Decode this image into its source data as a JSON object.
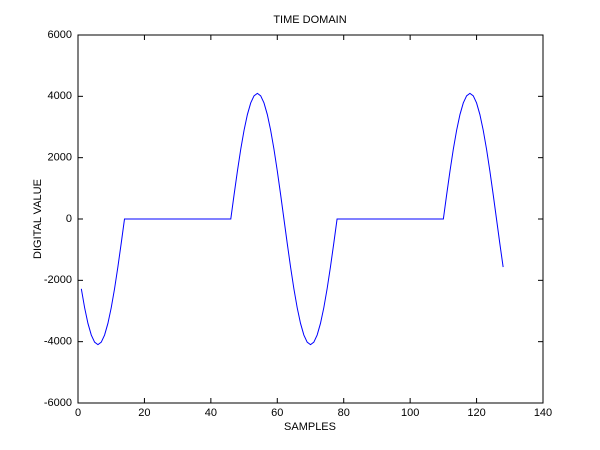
{
  "chart_data": {
    "type": "line",
    "title": "TIME DOMAIN",
    "xlabel": "SAMPLES",
    "ylabel": "DIGITAL VALUE",
    "x": [
      1,
      2,
      3,
      4,
      5,
      6,
      7,
      8,
      9,
      10,
      11,
      12,
      13,
      14,
      15,
      16,
      17,
      18,
      19,
      20,
      21,
      22,
      23,
      24,
      25,
      26,
      27,
      28,
      29,
      30,
      31,
      32,
      33,
      34,
      35,
      36,
      37,
      38,
      39,
      40,
      41,
      42,
      43,
      44,
      45,
      46,
      47,
      48,
      49,
      50,
      51,
      52,
      53,
      54,
      55,
      56,
      57,
      58,
      59,
      60,
      61,
      62,
      63,
      64,
      65,
      66,
      67,
      68,
      69,
      70,
      71,
      72,
      73,
      74,
      75,
      76,
      77,
      78,
      79,
      80,
      81,
      82,
      83,
      84,
      85,
      86,
      87,
      88,
      89,
      90,
      91,
      92,
      93,
      94,
      95,
      96,
      97,
      98,
      99,
      100,
      101,
      102,
      103,
      104,
      105,
      106,
      107,
      108,
      109,
      110,
      111,
      112,
      113,
      114,
      115,
      116,
      117,
      118,
      119,
      120,
      121,
      122,
      123,
      124,
      125,
      126,
      127,
      128
    ],
    "series": [
      {
        "color": "#0000ff",
        "values": [
          -2276,
          -2896,
          -3406,
          -3784,
          -4017,
          -4096,
          -4017,
          -3784,
          -3406,
          -2896,
          -2276,
          -1567,
          -799,
          0,
          0,
          0,
          0,
          0,
          0,
          0,
          0,
          0,
          0,
          0,
          0,
          0,
          0,
          0,
          0,
          0,
          0,
          0,
          0,
          0,
          0,
          0,
          0,
          0,
          0,
          0,
          0,
          0,
          0,
          0,
          0,
          0,
          799,
          1567,
          2276,
          2896,
          3406,
          3784,
          4017,
          4096,
          4017,
          3784,
          3406,
          2896,
          2276,
          1567,
          799,
          0,
          -799,
          -1567,
          -2276,
          -2896,
          -3406,
          -3784,
          -4017,
          -4096,
          -4017,
          -3784,
          -3406,
          -2896,
          -2276,
          -1567,
          -799,
          0,
          0,
          0,
          0,
          0,
          0,
          0,
          0,
          0,
          0,
          0,
          0,
          0,
          0,
          0,
          0,
          0,
          0,
          0,
          0,
          0,
          0,
          0,
          0,
          0,
          0,
          0,
          0,
          0,
          0,
          0,
          0,
          0,
          799,
          1567,
          2276,
          2896,
          3406,
          3784,
          4017,
          4096,
          4017,
          3784,
          3406,
          2896,
          2276,
          1567,
          799,
          0,
          -799,
          -1567
        ]
      }
    ],
    "xlim": [
      0,
      140
    ],
    "xticks": [
      0,
      20,
      40,
      60,
      80,
      100,
      120,
      140
    ],
    "ylim": [
      -6000,
      6000
    ],
    "yticks": [
      -6000,
      -4000,
      -2000,
      0,
      2000,
      4000,
      6000
    ]
  }
}
